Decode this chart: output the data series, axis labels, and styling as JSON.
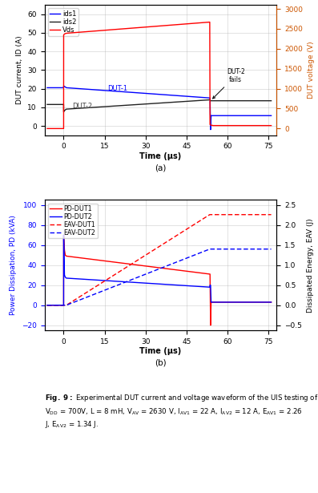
{
  "fig_width": 3.97,
  "fig_height": 6.15,
  "dpi": 100,
  "panel_a": {
    "xlim": [
      -7,
      78
    ],
    "ylim_left": [
      -5,
      65
    ],
    "ylim_right": [
      -166,
      3100
    ],
    "yticks_left": [
      0,
      10,
      20,
      30,
      40,
      50,
      60
    ],
    "yticks_right": [
      0,
      500,
      1000,
      1500,
      2000,
      2500,
      3000
    ],
    "ylabel_left": "DUT current, ID (A)",
    "ylabel_right": "DUT voltage (V)",
    "ylabel_right_color": "#cc5500"
  },
  "panel_b": {
    "xlim": [
      -7,
      78
    ],
    "ylim_left": [
      -25,
      105
    ],
    "ylim_right": [
      -0.625,
      2.625
    ],
    "yticks_left": [
      -20,
      0,
      20,
      40,
      60,
      80,
      100
    ],
    "yticks_right": [
      -0.5,
      0,
      0.5,
      1.0,
      1.5,
      2.0,
      2.5
    ],
    "ylabel_left": "Power Dissipation, PD (kVA)",
    "ylabel_right": "Dissipated Energy, EAV (J)",
    "ylabel_left_color": "blue"
  }
}
